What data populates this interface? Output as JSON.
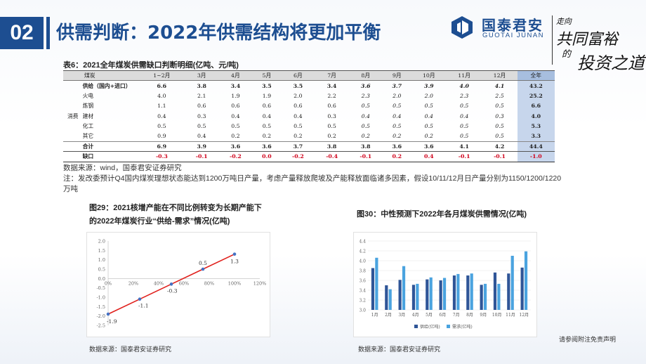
{
  "header": {
    "page_number": "02",
    "title": "供需判断：2022年供需结构将更加平衡",
    "logo_cn": "国泰君安",
    "logo_en": "GUOTAI JUNAN",
    "slogan": [
      "走向",
      "共同富裕",
      "的",
      "投资之道"
    ]
  },
  "table": {
    "title": "表6：2021全年煤炭供需缺口判断明细(亿吨、元/吨)",
    "header": [
      "煤炭",
      "1~2月",
      "3月",
      "4月",
      "5月",
      "6月",
      "7月",
      "8月",
      "9月",
      "10月",
      "11月",
      "12月",
      "全年"
    ],
    "rows": [
      {
        "group": "",
        "label": "供给（国内+进口）",
        "values": [
          "6.6",
          "3.8",
          "3.4",
          "3.5",
          "3.5",
          "3.4",
          "3.6",
          "3.7",
          "3.9",
          "4.0",
          "4.1",
          "43.2"
        ],
        "italic_from": 6
      },
      {
        "group": "",
        "label": "火电",
        "values": [
          "4.0",
          "2.1",
          "1.9",
          "1.9",
          "2.0",
          "2.2",
          "2.3",
          "2.0",
          "2.0",
          "2.3",
          "2.5",
          "25.2"
        ],
        "italic_from": 6
      },
      {
        "group": "",
        "label": "炼钢",
        "values": [
          "1.1",
          "0.6",
          "0.6",
          "0.6",
          "0.6",
          "0.6",
          "0.5",
          "0.5",
          "0.5",
          "0.5",
          "0.5",
          "6.6"
        ],
        "italic_from": 6
      },
      {
        "group": "消费",
        "label": "建材",
        "values": [
          "0.4",
          "0.3",
          "0.4",
          "0.4",
          "0.4",
          "0.3",
          "0.4",
          "0.4",
          "0.4",
          "0.4",
          "0.3",
          "4.0"
        ],
        "italic_from": 6
      },
      {
        "group": "",
        "label": "化工",
        "values": [
          "0.5",
          "0.5",
          "0.5",
          "0.5",
          "0.5",
          "0.5",
          "0.5",
          "0.5",
          "0.5",
          "0.5",
          "0.5",
          "5.3"
        ],
        "italic_from": 6
      },
      {
        "group": "",
        "label": "其它",
        "values": [
          "0.9",
          "0.4",
          "0.2",
          "0.2",
          "0.2",
          "0.2",
          "0.2",
          "0.2",
          "0.2",
          "0.5",
          "0.5",
          "3.3"
        ],
        "italic_from": 6
      },
      {
        "group": "",
        "label": "合计",
        "values": [
          "6.9",
          "3.9",
          "3.6",
          "3.6",
          "3.7",
          "3.8",
          "3.8",
          "3.6",
          "3.6",
          "4.1",
          "4.2",
          "44.4"
        ],
        "italic_from": 99
      },
      {
        "group": "",
        "label": "缺口",
        "values": [
          "-0.3",
          "-0.1",
          "-0.2",
          "0.0",
          "-0.2",
          "-0.4",
          "-0.1",
          "0.2",
          "0.4",
          "-0.1",
          "-0.1",
          "-1.0"
        ],
        "italic_from": 99
      }
    ]
  },
  "notes": {
    "source": "数据来源：wind，国泰君安证券研究",
    "remark": "注：发改委预计Q4国内煤炭理想状态能达到1200万吨日产量，考虑产量释放爬坡及产能释放面临诸多因素，假设10/11/12月日产量分别为1150/1200/1220万吨"
  },
  "fig29": {
    "title_line1": "图29：2021核增产能在不同比例转变为长期产能下",
    "title_line2": "的2022年煤炭行业“供给-需求”情况(亿吨)",
    "source": "数据来源：国泰君安证券研究"
  },
  "fig30": {
    "title": "图30：中性预测下2022年各月煤炭供需情况(亿吨)",
    "source": "数据来源：国泰君安证券研究"
  },
  "disclaimer": "请参阅附注免责声明",
  "colors": {
    "brand": "#1d4e91",
    "line": "#e0201c",
    "point": "#4472c4",
    "supply": "#2f5597",
    "demand": "#4aa3df"
  },
  "chart_data": [
    {
      "type": "line",
      "title": "图29：2021核增产能在不同比例转变为长期产能下的2022年煤炭行业“供给-需求”情况(亿吨)",
      "x": [
        0,
        25,
        50,
        75,
        100
      ],
      "x_ticks": [
        "0%",
        "20%",
        "40%",
        "60%",
        "80%",
        "100%",
        "120%"
      ],
      "x_tick_values": [
        0,
        20,
        40,
        60,
        80,
        100,
        120
      ],
      "y_ticks": [
        "2.0",
        "1.5",
        "1.0",
        "0.5",
        "0.0",
        "-0.5",
        "-1.0",
        "-1.5",
        "-2.0",
        "-2.5"
      ],
      "y_tick_values": [
        2.0,
        1.5,
        1.0,
        0.5,
        0.0,
        -0.5,
        -1.0,
        -1.5,
        -2.0,
        -2.5
      ],
      "series": [
        {
          "values": [
            -1.9,
            -1.1,
            -0.3,
            0.5,
            1.3
          ]
        }
      ],
      "point_labels": [
        "-1.9",
        "-1.1",
        "-0.3",
        "0.5",
        "1.3"
      ],
      "xlim": [
        0,
        120
      ],
      "ylim": [
        -2.5,
        2.0
      ],
      "grid": false
    },
    {
      "type": "bar",
      "title": "图30：中性预测下2022年各月煤炭供需情况(亿吨)",
      "categories": [
        "1月",
        "2月",
        "3月",
        "4月",
        "5月",
        "6月",
        "7月",
        "8月",
        "9月",
        "10月",
        "11月",
        "12月"
      ],
      "series": [
        {
          "name": "供给(亿吨)",
          "values": [
            3.85,
            3.5,
            3.61,
            3.51,
            3.62,
            3.6,
            3.7,
            3.7,
            3.51,
            3.76,
            3.74,
            3.86
          ]
        },
        {
          "name": "需求(亿吨)",
          "values": [
            4.06,
            3.42,
            3.89,
            3.53,
            3.66,
            3.65,
            3.73,
            3.74,
            3.53,
            3.53,
            4.1,
            4.19
          ]
        }
      ],
      "y_ticks": [
        "4.4",
        "4.2",
        "4.0",
        "3.8",
        "3.6",
        "3.4",
        "3.2",
        "3.0"
      ],
      "y_tick_values": [
        4.4,
        4.2,
        4.0,
        3.8,
        3.6,
        3.4,
        3.2,
        3.0
      ],
      "ylim": [
        3.0,
        4.4
      ],
      "grid": true,
      "legend": "bottom"
    }
  ]
}
